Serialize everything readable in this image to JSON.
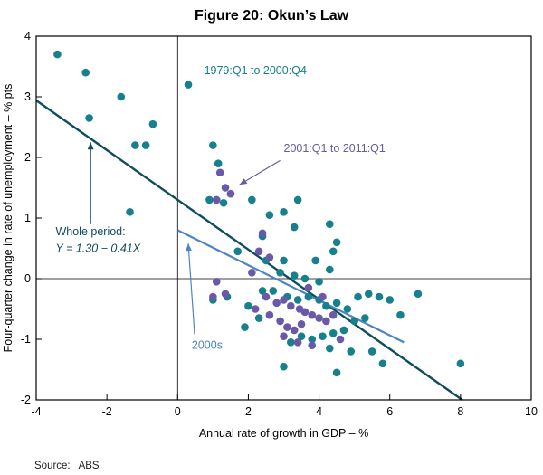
{
  "title": "Figure 20: Okun’s Law",
  "source": "Source:   ABS",
  "chart_data": {
    "type": "scatter",
    "title": "Figure 20: Okun’s Law",
    "xlabel": "Annual rate of growth in GDP – %",
    "ylabel": "Four-quarter change in rate of unemployment – % pts",
    "xlim": [
      -4,
      10
    ],
    "ylim": [
      -2,
      4
    ],
    "xticks": [
      -4,
      -2,
      0,
      2,
      4,
      6,
      8,
      10
    ],
    "yticks": [
      -2,
      -1,
      0,
      1,
      2,
      3,
      4
    ],
    "grid": false,
    "zero_lines": true,
    "series": [
      {
        "name": "1979:Q1 to 2000:Q4",
        "color": "#17808d",
        "points": [
          [
            -3.4,
            3.7
          ],
          [
            -2.6,
            3.4
          ],
          [
            -2.5,
            2.65
          ],
          [
            -1.6,
            3.0
          ],
          [
            -1.2,
            2.2
          ],
          [
            -0.9,
            2.2
          ],
          [
            -0.7,
            2.55
          ],
          [
            -1.35,
            1.1
          ],
          [
            0.3,
            3.2
          ],
          [
            1.0,
            2.2
          ],
          [
            1.15,
            1.9
          ],
          [
            0.9,
            1.3
          ],
          [
            1.3,
            1.25
          ],
          [
            2.1,
            1.3
          ],
          [
            2.6,
            1.05
          ],
          [
            3.4,
            1.3
          ],
          [
            3.0,
            1.1
          ],
          [
            3.3,
            0.85
          ],
          [
            2.4,
            0.7
          ],
          [
            4.3,
            0.9
          ],
          [
            4.5,
            0.6
          ],
          [
            4.4,
            0.45
          ],
          [
            1.7,
            0.45
          ],
          [
            2.5,
            0.3
          ],
          [
            3.0,
            0.3
          ],
          [
            3.9,
            0.3
          ],
          [
            4.3,
            0.15
          ],
          [
            2.9,
            0.1
          ],
          [
            3.3,
            0.05
          ],
          [
            3.6,
            0.0
          ],
          [
            4.0,
            -0.05
          ],
          [
            1.0,
            -0.35
          ],
          [
            1.4,
            -0.3
          ],
          [
            2.0,
            -0.45
          ],
          [
            2.4,
            -0.2
          ],
          [
            2.7,
            -0.2
          ],
          [
            3.1,
            -0.3
          ],
          [
            3.4,
            -0.35
          ],
          [
            3.7,
            -0.3
          ],
          [
            4.0,
            -0.35
          ],
          [
            4.2,
            -0.45
          ],
          [
            4.5,
            -0.4
          ],
          [
            4.8,
            -0.5
          ],
          [
            5.1,
            -0.3
          ],
          [
            5.4,
            -0.25
          ],
          [
            5.7,
            -0.3
          ],
          [
            6.0,
            -0.35
          ],
          [
            6.3,
            -0.6
          ],
          [
            6.8,
            -0.25
          ],
          [
            5.0,
            -0.7
          ],
          [
            5.3,
            -0.65
          ],
          [
            4.7,
            -0.85
          ],
          [
            4.4,
            -0.9
          ],
          [
            4.1,
            -0.95
          ],
          [
            3.8,
            -1.0
          ],
          [
            3.5,
            -0.95
          ],
          [
            3.2,
            -1.05
          ],
          [
            4.3,
            -1.15
          ],
          [
            4.9,
            -1.2
          ],
          [
            5.5,
            -1.2
          ],
          [
            5.8,
            -1.4
          ],
          [
            3.0,
            -1.45
          ],
          [
            4.5,
            -1.55
          ],
          [
            8.0,
            -1.4
          ],
          [
            2.3,
            -0.65
          ],
          [
            1.9,
            -0.8
          ]
        ]
      },
      {
        "name": "2001:Q1 to 2011:Q1",
        "color": "#6b59a7",
        "points": [
          [
            1.2,
            1.75
          ],
          [
            1.35,
            1.5
          ],
          [
            1.5,
            1.4
          ],
          [
            1.1,
            1.3
          ],
          [
            2.3,
            0.45
          ],
          [
            2.6,
            0.35
          ],
          [
            2.4,
            0.75
          ],
          [
            2.1,
            0.1
          ],
          [
            1.1,
            -0.05
          ],
          [
            1.0,
            -0.3
          ],
          [
            1.35,
            -0.25
          ],
          [
            2.5,
            -0.3
          ],
          [
            2.8,
            -0.4
          ],
          [
            3.0,
            -0.35
          ],
          [
            3.2,
            -0.45
          ],
          [
            3.45,
            -0.5
          ],
          [
            3.6,
            -0.55
          ],
          [
            3.8,
            -0.6
          ],
          [
            4.0,
            -0.65
          ],
          [
            4.2,
            -0.7
          ],
          [
            4.4,
            -0.6
          ],
          [
            2.9,
            -0.7
          ],
          [
            3.1,
            -0.8
          ],
          [
            3.3,
            -0.85
          ],
          [
            3.5,
            -0.75
          ],
          [
            3.0,
            -0.95
          ],
          [
            3.4,
            -1.05
          ],
          [
            3.8,
            -1.1
          ],
          [
            4.6,
            -1.0
          ],
          [
            2.6,
            -0.6
          ],
          [
            2.2,
            -0.5
          ],
          [
            4.1,
            -0.3
          ],
          [
            3.7,
            -0.15
          ]
        ]
      }
    ],
    "lines": [
      {
        "name": "Whole period: Y = 1.30 − 0.41X",
        "equation": "Y = 1.30 − 0.41X",
        "color": "#0e4c5e",
        "x1": -4,
        "y1": 2.94,
        "x2": 8.05,
        "y2": -2.0,
        "width": 2.4
      },
      {
        "name": "2000s",
        "color": "#4d84c4",
        "x1": 0.0,
        "y1": 0.8,
        "x2": 6.4,
        "y2": -1.05,
        "width": 2.2
      }
    ],
    "annotations": [
      {
        "text": "1979:Q1 to 2000:Q4",
        "color": "#17808d",
        "x": 0.75,
        "y": 3.37,
        "anchor": "start"
      },
      {
        "text": "2001:Q1 to 2011:Q1",
        "color": "#6b59a7",
        "x": 3.0,
        "y": 2.09,
        "anchor": "start",
        "arrow": {
          "x1": 2.9,
          "y1": 1.95,
          "x2": 1.75,
          "y2": 1.55
        }
      },
      {
        "text": "Whole period:",
        "color": "#0e4c5e",
        "x": -3.45,
        "y": 0.72,
        "anchor": "start",
        "arrow": {
          "x1": -2.46,
          "y1": 0.9,
          "x2": -2.46,
          "y2": 2.25
        }
      },
      {
        "text": "Y = 1.30 − 0.41X",
        "color": "#0e4c5e",
        "x": -3.45,
        "y": 0.44,
        "anchor": "start",
        "italic": true
      },
      {
        "text": "2000s",
        "color": "#4d84c4",
        "x": 0.4,
        "y": -1.16,
        "anchor": "start",
        "arrow": {
          "x1": 0.48,
          "y1": -0.92,
          "x2": 0.3,
          "y2": 0.58
        }
      }
    ],
    "legend_position": "none"
  }
}
